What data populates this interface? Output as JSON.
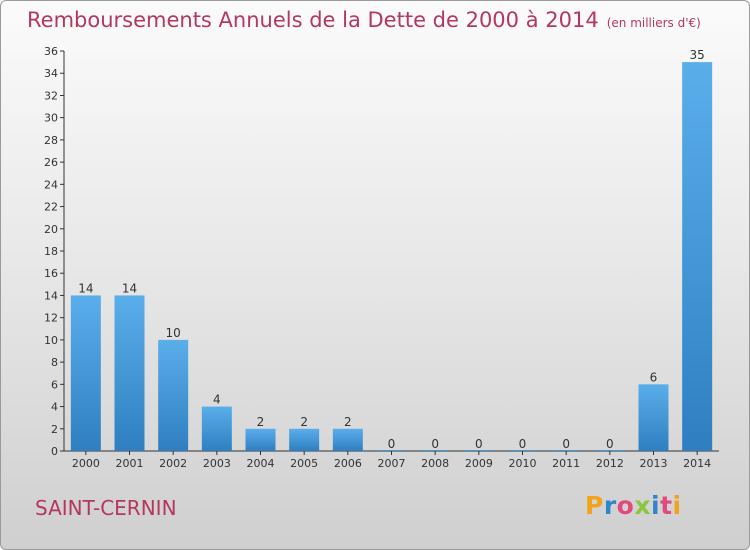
{
  "header": {
    "title": "Remboursements Annuels de la Dette de 2000 à 2014",
    "unit": "(en milliers d'€)"
  },
  "footer": {
    "commune": "SAINT-CERNIN",
    "logo": "Proxiti"
  },
  "colors": {
    "title": "#b5375e",
    "bar_top": "#5aaeea",
    "bar_bottom": "#2f7fc0",
    "logo": [
      "#f2a31b",
      "#2f86c9",
      "#e34a7c",
      "#8cc63f",
      "#2f86c9",
      "#e34a7c",
      "#f2a31b"
    ]
  },
  "chart_data": {
    "type": "bar",
    "title": "Remboursements Annuels de la Dette de 2000 à 2014",
    "ylabel": "(en milliers d'€)",
    "categories": [
      "2000",
      "2001",
      "2002",
      "2003",
      "2004",
      "2005",
      "2006",
      "2007",
      "2008",
      "2009",
      "2010",
      "2011",
      "2012",
      "2013",
      "2014"
    ],
    "values": [
      14,
      14,
      10,
      4,
      2,
      2,
      2,
      0,
      0,
      0,
      0,
      0,
      0,
      6,
      35
    ],
    "ylim": [
      0,
      36
    ],
    "yticks": [
      0,
      2,
      4,
      6,
      8,
      10,
      12,
      14,
      16,
      18,
      20,
      22,
      24,
      26,
      28,
      30,
      32,
      34,
      36
    ],
    "grid": false
  }
}
